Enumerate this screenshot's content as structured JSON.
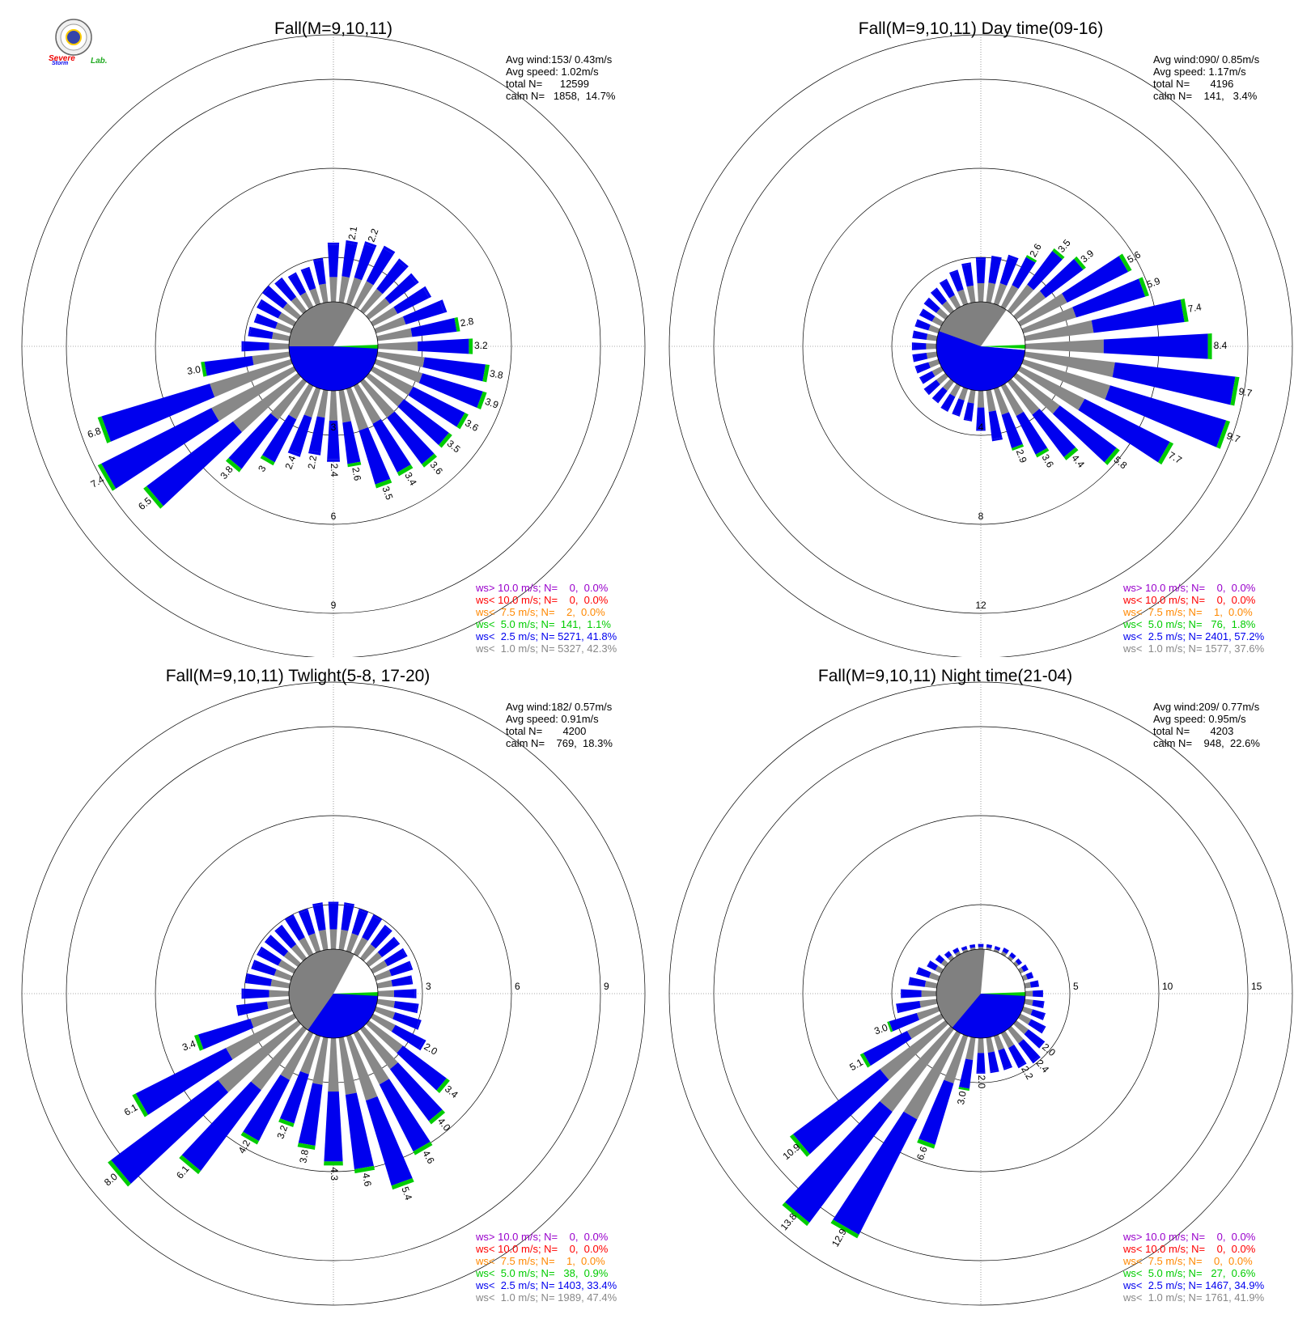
{
  "logo": {
    "text": "SevereStorm Lab.",
    "text_lab": "Lab.",
    "text_severe": "Severe",
    "text_storm": "Storm"
  },
  "colors": {
    "lt1": "#888888",
    "lt25": "#0000ee",
    "lt5": "#00cc00",
    "lt75": "#ff8800",
    "lt10": "#ff0000",
    "gt10": "#9900cc",
    "calm_dark": "#808080",
    "calm_blue": "#0000ee"
  },
  "chart_data": [
    {
      "type": "wind_rose",
      "title": "Fall(M=9,10,11)",
      "stats": {
        "avg_wind": "Avg wind:153/ 0.43m/s",
        "avg_speed": "Avg speed: 1.02m/s",
        "total": "total N=      12599",
        "calm": "calm N=   1858,  14.7%"
      },
      "rings": [
        3,
        6,
        9
      ],
      "ring_labels": [
        "3",
        "6",
        "9"
      ],
      "ring_label_direction": "south",
      "calm_fraction": 0.147,
      "calm_blue_arc_deg": [
        90,
        270
      ],
      "calm_white_arc_deg": [
        30,
        90
      ],
      "sectors": 36,
      "values": [
        2.0,
        2.1,
        2.2,
        2.3,
        2.2,
        2.1,
        2.2,
        2.5,
        2.8,
        3.2,
        3.8,
        3.9,
        3.6,
        3.5,
        3.6,
        3.4,
        3.5,
        2.6,
        2.4,
        2.2,
        2.4,
        3.0,
        3.8,
        6.5,
        7.4,
        6.8,
        3.0,
        1.6,
        1.4,
        1.3,
        1.4,
        1.5,
        1.4,
        1.3,
        1.3,
        1.5
      ],
      "labels": [
        "",
        "2.1",
        "2.2",
        "",
        "",
        "",
        "",
        "",
        "2.8",
        "3.2",
        "3.8",
        "3.9",
        "3.6",
        "3.5",
        "3.6",
        "3.4",
        "3.5",
        "2.6",
        "2.4",
        "2.2",
        "2.4",
        "3",
        "3.8",
        "6.5",
        "7.4",
        "6.8",
        "3.0",
        "",
        "",
        "",
        "",
        "",
        "",
        "",
        "",
        ""
      ],
      "legend": [
        {
          "text": "ws> 10.0 m/s; N=    0,  0.0%",
          "color": "#9900cc"
        },
        {
          "text": "ws< 10.0 m/s; N=    0,  0.0%",
          "color": "#ff0000"
        },
        {
          "text": "ws<  7.5 m/s; N=    2,  0.0%",
          "color": "#ff8800"
        },
        {
          "text": "ws<  5.0 m/s; N=  141,  1.1%",
          "color": "#00cc00"
        },
        {
          "text": "ws<  2.5 m/s; N= 5271, 41.8%",
          "color": "#0000ee"
        },
        {
          "text": "ws<  1.0 m/s; N= 5327, 42.3%",
          "color": "#888888"
        }
      ]
    },
    {
      "type": "wind_rose",
      "title": "Fall(M=9,10,11) Day time(09-16)",
      "stats": {
        "avg_wind": "Avg wind:090/ 0.85m/s",
        "avg_speed": "Avg speed: 1.17m/s",
        "total": "total N=       4196",
        "calm": "calm N=    141,   3.4%"
      },
      "rings": [
        4,
        8,
        12
      ],
      "ring_labels": [
        "4",
        "8",
        "12"
      ],
      "ring_label_direction": "south",
      "calm_fraction": 0.034,
      "calm_blue_arc_deg": [
        95,
        290
      ],
      "calm_white_arc_deg": [
        35,
        95
      ],
      "sectors": 36,
      "values": [
        2.0,
        2.1,
        2.3,
        2.6,
        3.5,
        3.9,
        5.6,
        5.9,
        7.4,
        8.4,
        9.7,
        9.7,
        7.7,
        5.8,
        4.4,
        3.6,
        2.9,
        2.3,
        1.8,
        1.4,
        1.3,
        1.3,
        1.2,
        1.2,
        1.1,
        1.1,
        1.1,
        1.1,
        1.1,
        1.1,
        1.1,
        1.2,
        1.3,
        1.4,
        1.6,
        1.8
      ],
      "labels": [
        "",
        "",
        "",
        "2.6",
        "3.5",
        "3.9",
        "5.6",
        "5.9",
        "7.4",
        "8.4",
        "9.7",
        "9.7",
        "7.7",
        "5.8",
        "4.4",
        "3.6",
        "2.9",
        "",
        "",
        "",
        "",
        "",
        "",
        "",
        "",
        "",
        "",
        "",
        "",
        "",
        "",
        "",
        "",
        "",
        "",
        ""
      ],
      "legend": [
        {
          "text": "ws> 10.0 m/s; N=    0,  0.0%",
          "color": "#9900cc"
        },
        {
          "text": "ws< 10.0 m/s; N=    0,  0.0%",
          "color": "#ff0000"
        },
        {
          "text": "ws<  7.5 m/s; N=    1,  0.0%",
          "color": "#ff8800"
        },
        {
          "text": "ws<  5.0 m/s; N=   76,  1.8%",
          "color": "#00cc00"
        },
        {
          "text": "ws<  2.5 m/s; N= 2401, 57.2%",
          "color": "#0000ee"
        },
        {
          "text": "ws<  1.0 m/s; N= 1577, 37.6%",
          "color": "#888888"
        }
      ]
    },
    {
      "type": "wind_rose",
      "title": "Fall(M=9,10,11) Twlight(5-8, 17-20)",
      "stats": {
        "avg_wind": "Avg wind:182/ 0.57m/s",
        "avg_speed": "Avg speed: 0.91m/s",
        "total": "total N=       4200",
        "calm": "calm N=    769,  18.3%"
      },
      "rings": [
        3,
        6,
        9
      ],
      "ring_labels": [
        "3",
        "6",
        "9"
      ],
      "ring_label_direction": "east",
      "calm_fraction": 0.183,
      "calm_blue_arc_deg": [
        90,
        215
      ],
      "calm_white_arc_deg": [
        28,
        90
      ],
      "sectors": 36,
      "values": [
        1.6,
        1.6,
        1.5,
        1.5,
        1.4,
        1.3,
        1.3,
        1.3,
        1.2,
        1.3,
        1.4,
        1.6,
        2.0,
        3.4,
        4.0,
        4.6,
        5.4,
        4.6,
        4.3,
        3.8,
        3.2,
        4.2,
        6.1,
        8.0,
        6.1,
        3.4,
        1.8,
        1.6,
        1.5,
        1.4,
        1.4,
        1.4,
        1.4,
        1.5,
        1.5,
        1.6
      ],
      "labels": [
        "",
        "",
        "",
        "",
        "",
        "",
        "",
        "",
        "",
        "",
        "",
        "",
        "2.0",
        "3.4",
        "4.0",
        "4.6",
        "5.4",
        "4.6",
        "4.3",
        "3.8",
        "3.2",
        "4.2",
        "6.1",
        "8.0",
        "6.1",
        "3.4",
        "",
        "",
        "",
        "",
        "",
        "",
        "",
        "",
        "",
        ""
      ],
      "legend": [
        {
          "text": "ws> 10.0 m/s; N=    0,  0.0%",
          "color": "#9900cc"
        },
        {
          "text": "ws< 10.0 m/s; N=    0,  0.0%",
          "color": "#ff0000"
        },
        {
          "text": "ws<  7.5 m/s; N=    1,  0.0%",
          "color": "#ff8800"
        },
        {
          "text": "ws<  5.0 m/s; N=   38,  0.9%",
          "color": "#00cc00"
        },
        {
          "text": "ws<  2.5 m/s; N= 1403, 33.4%",
          "color": "#0000ee"
        },
        {
          "text": "ws<  1.0 m/s; N= 1989, 47.4%",
          "color": "#888888"
        }
      ]
    },
    {
      "type": "wind_rose",
      "title": "Fall(M=9,10,11) Night time(21-04)",
      "stats": {
        "avg_wind": "Avg wind:209/ 0.77m/s",
        "avg_speed": "Avg speed: 0.95m/s",
        "total": "total N=       4203",
        "calm": "calm N=    948,  22.6%"
      },
      "rings": [
        5,
        10,
        15
      ],
      "ring_labels": [
        "5",
        "10",
        "15"
      ],
      "ring_label_direction": "east",
      "calm_fraction": 0.226,
      "calm_blue_arc_deg": [
        90,
        220
      ],
      "calm_white_arc_deg": [
        5,
        90
      ],
      "sectors": 36,
      "values": [
        0.3,
        0.3,
        0.3,
        0.4,
        0.4,
        0.4,
        0.5,
        0.6,
        0.8,
        1.0,
        1.1,
        1.3,
        1.6,
        2.0,
        2.4,
        2.2,
        2.0,
        2.0,
        2.0,
        3.0,
        6.6,
        12.9,
        13.8,
        10.9,
        5.1,
        3.0,
        2.3,
        2.0,
        1.6,
        1.3,
        0.9,
        0.7,
        0.5,
        0.4,
        0.3,
        0.3
      ],
      "labels": [
        "",
        "",
        "",
        "",
        "",
        "",
        "",
        "",
        "",
        "",
        "",
        "",
        "",
        "2.0",
        "2.4",
        "2.2",
        "",
        "",
        "2.0",
        "3.0",
        "6.6",
        "12.9",
        "13.8",
        "10.9",
        "5.1",
        "3.0",
        "",
        "",
        "",
        "",
        "",
        "",
        "",
        "",
        "",
        ""
      ],
      "legend": [
        {
          "text": "ws> 10.0 m/s; N=    0,  0.0%",
          "color": "#9900cc"
        },
        {
          "text": "ws< 10.0 m/s; N=    0,  0.0%",
          "color": "#ff0000"
        },
        {
          "text": "ws<  7.5 m/s; N=    0,  0.0%",
          "color": "#ff8800"
        },
        {
          "text": "ws<  5.0 m/s; N=   27,  0.6%",
          "color": "#00cc00"
        },
        {
          "text": "ws<  2.5 m/s; N= 1467, 34.9%",
          "color": "#0000ee"
        },
        {
          "text": "ws<  1.0 m/s; N= 1761, 41.9%",
          "color": "#888888"
        }
      ]
    }
  ]
}
